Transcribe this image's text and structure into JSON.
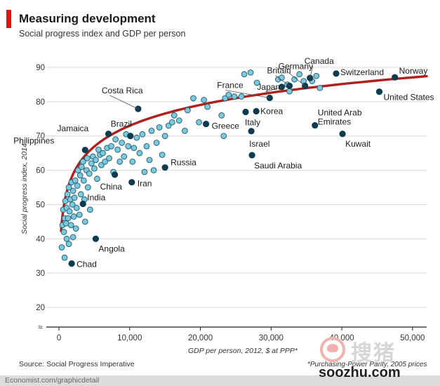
{
  "title": "Measuring development",
  "subtitle": "Social progress index and GDP per person",
  "source": "Source: Social Progress Imperative",
  "footnote": "*Purchasing-Power Parity, 2005 prices",
  "footer": "Economist.com/graphicdetail",
  "watermark": {
    "name": "搜猪",
    "url": "soozhu.com"
  },
  "colors": {
    "accent": "#e3120b",
    "curve": "#b0201c",
    "highlight": "#0d3b4f",
    "dot": "#7cc8dc",
    "dot_stroke": "#1d5a6e",
    "grid": "#d8d8d8",
    "footer_bg": "#dcdcdc"
  },
  "chart_data": {
    "type": "scatter",
    "title": "Measuring development",
    "xlabel": "GDP per person, 2012, $ at PPP*",
    "ylabel": "Social progress index, 2014",
    "xlim": [
      0,
      52000
    ],
    "ylim": [
      20,
      90
    ],
    "y_break_symbol": "≈",
    "xticks": [
      0,
      10000,
      20000,
      30000,
      40000,
      50000
    ],
    "xtick_labels": [
      "0",
      "10,000",
      "20,000",
      "30,000",
      "40,000",
      "50,000"
    ],
    "yticks": [
      20,
      30,
      40,
      50,
      60,
      70,
      80,
      90
    ],
    "ytick_labels": [
      "20",
      "30",
      "40",
      "50",
      "60",
      "70",
      "80",
      "90"
    ],
    "grid": "horizontal",
    "trend": {
      "type": "log",
      "a": -7.7,
      "b": 8.76,
      "x_range": [
        300,
        52000
      ]
    },
    "highlighted": [
      {
        "name": "Norway",
        "x": 47500,
        "y": 87.1
      },
      {
        "name": "Switzerland",
        "x": 39200,
        "y": 88.2
      },
      {
        "name": "Canada",
        "x": 35500,
        "y": 86.9
      },
      {
        "name": "Germany",
        "x": 34800,
        "y": 84.6
      },
      {
        "name": "Britain",
        "x": 32600,
        "y": 84.6
      },
      {
        "name": "Japan",
        "x": 31500,
        "y": 84.3
      },
      {
        "name": "France",
        "x": 29800,
        "y": 81.1
      },
      {
        "name": "United States",
        "x": 45300,
        "y": 82.9
      },
      {
        "name": "Korea",
        "x": 27900,
        "y": 77.2
      },
      {
        "name": "Italy",
        "x": 26400,
        "y": 77.0
      },
      {
        "name": "Israel",
        "x": 27200,
        "y": 71.4
      },
      {
        "name": "Saudi Arabia",
        "x": 27300,
        "y": 64.4
      },
      {
        "name": "United Arab Emirates",
        "x": 36200,
        "y": 73.1
      },
      {
        "name": "Kuwait",
        "x": 40100,
        "y": 70.6
      },
      {
        "name": "Greece",
        "x": 20800,
        "y": 73.5
      },
      {
        "name": "Costa Rica",
        "x": 11200,
        "y": 77.9
      },
      {
        "name": "Brazil",
        "x": 10100,
        "y": 70.0
      },
      {
        "name": "Jamaica",
        "x": 7000,
        "y": 70.6
      },
      {
        "name": "Philippines",
        "x": 3700,
        "y": 65.9
      },
      {
        "name": "Russia",
        "x": 15000,
        "y": 60.8
      },
      {
        "name": "China",
        "x": 7900,
        "y": 58.7
      },
      {
        "name": "Iran",
        "x": 10300,
        "y": 56.5
      },
      {
        "name": "India",
        "x": 3400,
        "y": 50.2
      },
      {
        "name": "Angola",
        "x": 5200,
        "y": 40.0
      },
      {
        "name": "Chad",
        "x": 1800,
        "y": 32.8
      }
    ],
    "other_points": [
      [
        400,
        37.5
      ],
      [
        500,
        44
      ],
      [
        600,
        48.5
      ],
      [
        700,
        42
      ],
      [
        800,
        46
      ],
      [
        800,
        34.5
      ],
      [
        900,
        51
      ],
      [
        1000,
        44.5
      ],
      [
        1100,
        49
      ],
      [
        1100,
        40
      ],
      [
        1200,
        53
      ],
      [
        1300,
        46
      ],
      [
        1400,
        55
      ],
      [
        1400,
        38.5
      ],
      [
        1500,
        48
      ],
      [
        1600,
        51.5
      ],
      [
        1700,
        44
      ],
      [
        1800,
        56.5
      ],
      [
        1900,
        50
      ],
      [
        2000,
        54
      ],
      [
        2000,
        40.5
      ],
      [
        2100,
        46.5
      ],
      [
        2200,
        52
      ],
      [
        2300,
        57
      ],
      [
        2400,
        43
      ],
      [
        2500,
        49
      ],
      [
        2600,
        55.5
      ],
      [
        2700,
        60
      ],
      [
        2900,
        47
      ],
      [
        3000,
        58.5
      ],
      [
        3100,
        53
      ],
      [
        3200,
        61
      ],
      [
        3400,
        62.5
      ],
      [
        3500,
        57
      ],
      [
        3600,
        51.5
      ],
      [
        3700,
        45
      ],
      [
        3900,
        60
      ],
      [
        4000,
        63.5
      ],
      [
        4100,
        55
      ],
      [
        4300,
        59
      ],
      [
        4400,
        48.5
      ],
      [
        4600,
        62
      ],
      [
        4800,
        64
      ],
      [
        5000,
        60.5
      ],
      [
        5200,
        63
      ],
      [
        5400,
        57.5
      ],
      [
        5600,
        66
      ],
      [
        5800,
        64.5
      ],
      [
        6000,
        61.5
      ],
      [
        6200,
        65
      ],
      [
        6500,
        62.5
      ],
      [
        6800,
        66.5
      ],
      [
        7100,
        63.5
      ],
      [
        7400,
        67
      ],
      [
        7700,
        59.5
      ],
      [
        8000,
        69
      ],
      [
        8300,
        66
      ],
      [
        8600,
        62.5
      ],
      [
        8900,
        68
      ],
      [
        9200,
        64
      ],
      [
        9500,
        70.5
      ],
      [
        9800,
        67
      ],
      [
        10400,
        62.5
      ],
      [
        10600,
        66.5
      ],
      [
        11000,
        69.5
      ],
      [
        11400,
        65
      ],
      [
        11800,
        70.5
      ],
      [
        12100,
        59.5
      ],
      [
        12400,
        67
      ],
      [
        12800,
        63
      ],
      [
        13100,
        71.5
      ],
      [
        13400,
        60
      ],
      [
        13800,
        68
      ],
      [
        14200,
        72.5
      ],
      [
        14600,
        64.5
      ],
      [
        15000,
        70
      ],
      [
        15500,
        73
      ],
      [
        16000,
        74
      ],
      [
        16300,
        76
      ],
      [
        17000,
        74.5
      ],
      [
        17800,
        71.5
      ],
      [
        18200,
        77.5
      ],
      [
        19000,
        81
      ],
      [
        19800,
        74
      ],
      [
        20500,
        80.5
      ],
      [
        21000,
        78.5
      ],
      [
        23000,
        76
      ],
      [
        23500,
        81
      ],
      [
        24000,
        82
      ],
      [
        24800,
        81.5
      ],
      [
        23300,
        70
      ],
      [
        25800,
        81.5
      ],
      [
        26200,
        88
      ],
      [
        27100,
        88.5
      ],
      [
        28000,
        85.5
      ],
      [
        31000,
        86.5
      ],
      [
        31500,
        87
      ],
      [
        32300,
        85
      ],
      [
        32600,
        83
      ],
      [
        33300,
        86.5
      ],
      [
        34000,
        88
      ],
      [
        34600,
        86
      ],
      [
        35800,
        86
      ],
      [
        36400,
        87.5
      ],
      [
        36900,
        84
      ]
    ]
  }
}
